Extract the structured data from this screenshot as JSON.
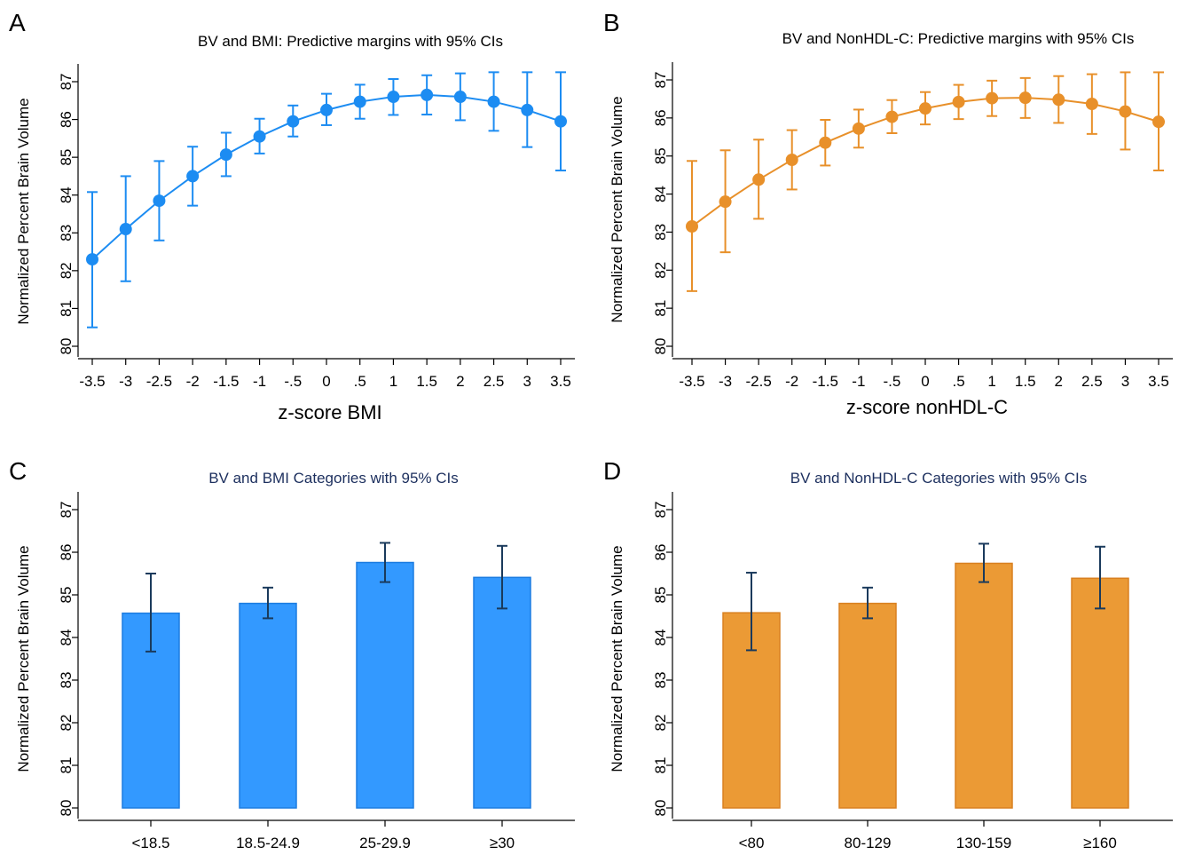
{
  "colors": {
    "blue": "#1c8cf2",
    "orange": "#e8902a",
    "bar_blue": "#3399ff",
    "bar_orange": "#eb9a35",
    "error_dark": "#1a3a5c",
    "title_navy": "#1c2f5e",
    "axis": "#000000"
  },
  "chart_data": [
    {
      "panel": "A",
      "type": "line",
      "title": "BV and BMI: Predictive margins with 95% CIs",
      "xlabel": "z-score BMI",
      "ylabel": "Normalized Percent Brain Volume",
      "ylim": [
        80,
        87
      ],
      "yticks": [
        80,
        81,
        82,
        83,
        84,
        85,
        86,
        87
      ],
      "x": [
        -3.5,
        -3,
        -2.5,
        -2,
        -1.5,
        -1,
        -0.5,
        0,
        0.5,
        1,
        1.5,
        2,
        2.5,
        3,
        3.5
      ],
      "x_tick_labels": [
        "-3.5",
        "-3",
        "-2.5",
        "-2",
        "-1.5",
        "-1",
        "-.5",
        "0",
        ".5",
        "1",
        "1.5",
        "2",
        "2.5",
        "3",
        "3.5"
      ],
      "values": [
        82.3,
        83.1,
        83.85,
        84.5,
        85.07,
        85.55,
        85.95,
        86.25,
        86.47,
        86.6,
        86.65,
        86.6,
        86.47,
        86.25,
        85.95
      ],
      "ci_lower": [
        80.5,
        81.72,
        82.8,
        83.72,
        84.5,
        85.1,
        85.55,
        85.85,
        86.02,
        86.12,
        86.13,
        85.98,
        85.7,
        85.27,
        84.65
      ],
      "ci_upper": [
        84.08,
        84.5,
        84.9,
        85.28,
        85.65,
        86.02,
        86.37,
        86.68,
        86.92,
        87.07,
        87.17,
        87.22,
        87.25,
        87.25,
        87.25
      ],
      "color": "#1c8cf2",
      "grid": false
    },
    {
      "panel": "B",
      "type": "line",
      "title": "BV and NonHDL-C: Predictive margins with 95% CIs",
      "xlabel": "z-score nonHDL-C",
      "ylabel": "Normalized Percent Brain Volume",
      "ylim": [
        80,
        87
      ],
      "yticks": [
        80,
        81,
        82,
        83,
        84,
        85,
        86,
        87
      ],
      "x": [
        -3.5,
        -3,
        -2.5,
        -2,
        -1.5,
        -1,
        -0.5,
        0,
        0.5,
        1,
        1.5,
        2,
        2.5,
        3,
        3.5
      ],
      "x_tick_labels": [
        "-3.5",
        "-3",
        "-2.5",
        "-2",
        "-1.5",
        "-1",
        "-.5",
        "0",
        ".5",
        "1",
        "1.5",
        "2",
        "2.5",
        "3",
        "3.5"
      ],
      "values": [
        83.15,
        83.8,
        84.38,
        84.9,
        85.35,
        85.72,
        86.03,
        86.25,
        86.42,
        86.52,
        86.53,
        86.48,
        86.37,
        86.17,
        85.9
      ],
      "ci_lower": [
        81.45,
        82.47,
        83.35,
        84.12,
        84.75,
        85.22,
        85.6,
        85.83,
        85.97,
        86.05,
        86.0,
        85.87,
        85.58,
        85.17,
        84.62
      ],
      "ci_upper": [
        84.87,
        85.15,
        85.43,
        85.68,
        85.95,
        86.22,
        86.47,
        86.68,
        86.87,
        86.98,
        87.05,
        87.1,
        87.15,
        87.2,
        87.2
      ],
      "color": "#e8902a",
      "grid": false
    },
    {
      "panel": "C",
      "type": "bar",
      "title": "BV and BMI Categories with 95% CIs",
      "xlabel": "",
      "ylabel": "Normalized Percent Brain Volume",
      "ylim": [
        80,
        87
      ],
      "yticks": [
        80,
        81,
        82,
        83,
        84,
        85,
        86,
        87
      ],
      "categories": [
        "<18.5",
        "18.5-24.9",
        "25-29.9",
        "≥30"
      ],
      "values": [
        84.57,
        84.8,
        85.76,
        85.41
      ],
      "ci_lower": [
        83.67,
        84.45,
        85.3,
        84.68
      ],
      "ci_upper": [
        85.5,
        85.17,
        86.22,
        86.15
      ],
      "color": "#3399ff",
      "grid": false
    },
    {
      "panel": "D",
      "type": "bar",
      "title": "BV and NonHDL-C Categories with 95% CIs",
      "xlabel": "",
      "ylabel": "Normalized Percent Brain Volume",
      "ylim": [
        80,
        87
      ],
      "yticks": [
        80,
        81,
        82,
        83,
        84,
        85,
        86,
        87
      ],
      "categories": [
        "<80",
        "80-129",
        "130-159",
        "≥160"
      ],
      "values": [
        84.58,
        84.8,
        85.74,
        85.39
      ],
      "ci_lower": [
        83.7,
        84.45,
        85.3,
        84.68
      ],
      "ci_upper": [
        85.52,
        85.17,
        86.2,
        86.13
      ],
      "color": "#eb9a35",
      "grid": false
    }
  ]
}
